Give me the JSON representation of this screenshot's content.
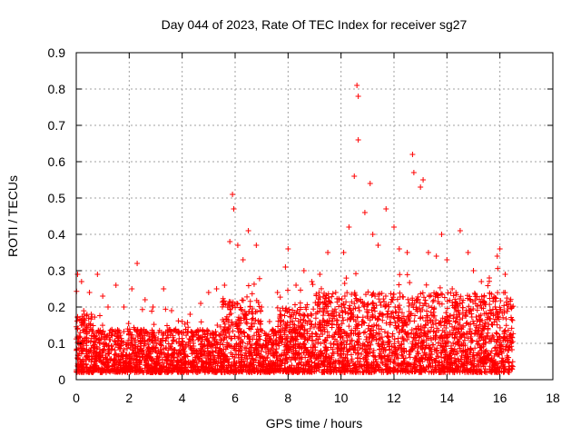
{
  "chart_data": {
    "type": "scatter",
    "title": "Day 044 of 2023, Rate Of TEC Index for receiver sg27",
    "xlabel": "GPS time / hours",
    "ylabel": "ROTI / TECUs",
    "xlim": [
      0,
      18
    ],
    "ylim": [
      0,
      0.9
    ],
    "xticks": [
      0,
      2,
      4,
      6,
      8,
      10,
      12,
      14,
      16,
      18
    ],
    "xtick_labels": [
      "0",
      "2",
      "4",
      "6",
      "8",
      "10",
      "12",
      "14",
      "16",
      "18"
    ],
    "yticks": [
      0,
      0.1,
      0.2,
      0.3,
      0.4,
      0.5,
      0.6,
      0.7,
      0.8,
      0.9
    ],
    "ytick_labels": [
      "0",
      "0.1",
      "0.2",
      "0.3",
      "0.4",
      "0.5",
      "0.6",
      "0.7",
      "0.8",
      "0.9"
    ],
    "grid": true,
    "marker": "+",
    "color": "#ff0000",
    "series": [
      {
        "name": "ROTI",
        "points": [
          [
            0.05,
            0.29
          ],
          [
            0.2,
            0.27
          ],
          [
            0.3,
            0.18
          ],
          [
            0.5,
            0.24
          ],
          [
            0.8,
            0.29
          ],
          [
            1.0,
            0.23
          ],
          [
            1.2,
            0.2
          ],
          [
            1.5,
            0.26
          ],
          [
            1.8,
            0.2
          ],
          [
            2.1,
            0.25
          ],
          [
            2.3,
            0.32
          ],
          [
            2.6,
            0.22
          ],
          [
            2.9,
            0.2
          ],
          [
            3.3,
            0.25
          ],
          [
            3.6,
            0.19
          ],
          [
            4.0,
            0.16
          ],
          [
            4.3,
            0.18
          ],
          [
            4.7,
            0.21
          ],
          [
            5.0,
            0.24
          ],
          [
            5.3,
            0.25
          ],
          [
            5.6,
            0.26
          ],
          [
            5.8,
            0.38
          ],
          [
            5.9,
            0.51
          ],
          [
            5.95,
            0.47
          ],
          [
            6.1,
            0.37
          ],
          [
            6.3,
            0.33
          ],
          [
            6.5,
            0.41
          ],
          [
            6.8,
            0.37
          ],
          [
            7.0,
            0.2
          ],
          [
            7.3,
            0.16
          ],
          [
            7.6,
            0.24
          ],
          [
            7.9,
            0.31
          ],
          [
            8.0,
            0.36
          ],
          [
            8.3,
            0.26
          ],
          [
            8.6,
            0.3
          ],
          [
            8.9,
            0.27
          ],
          [
            9.2,
            0.29
          ],
          [
            9.5,
            0.35
          ],
          [
            9.8,
            0.24
          ],
          [
            10.1,
            0.35
          ],
          [
            10.3,
            0.42
          ],
          [
            10.5,
            0.56
          ],
          [
            10.6,
            0.81
          ],
          [
            10.65,
            0.78
          ],
          [
            10.65,
            0.66
          ],
          [
            10.9,
            0.46
          ],
          [
            11.1,
            0.54
          ],
          [
            11.2,
            0.4
          ],
          [
            11.4,
            0.37
          ],
          [
            11.7,
            0.47
          ],
          [
            12.0,
            0.42
          ],
          [
            12.2,
            0.36
          ],
          [
            12.5,
            0.35
          ],
          [
            12.7,
            0.62
          ],
          [
            12.75,
            0.57
          ],
          [
            13.0,
            0.53
          ],
          [
            13.1,
            0.55
          ],
          [
            13.3,
            0.35
          ],
          [
            13.6,
            0.34
          ],
          [
            13.8,
            0.4
          ],
          [
            14.0,
            0.33
          ],
          [
            14.2,
            0.25
          ],
          [
            14.5,
            0.41
          ],
          [
            14.8,
            0.35
          ],
          [
            15.0,
            0.3
          ],
          [
            15.3,
            0.27
          ],
          [
            15.6,
            0.28
          ],
          [
            15.9,
            0.34
          ],
          [
            16.0,
            0.36
          ],
          [
            16.2,
            0.29
          ],
          [
            16.4,
            0.2
          ]
        ]
      }
    ]
  }
}
